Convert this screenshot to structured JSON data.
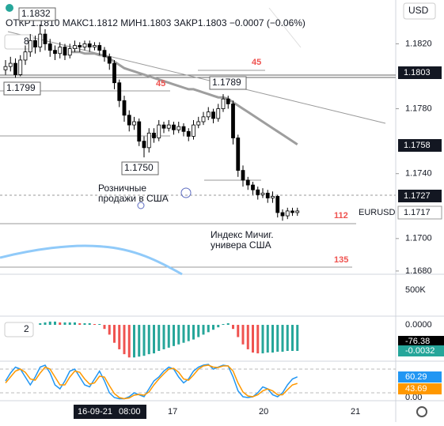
{
  "toolbar": {
    "currency": "USD"
  },
  "chart_data": {
    "type": "candlestick",
    "symbol": "EURUSD",
    "legend": "ОТКР1.1810  МАКС1.1812  МИН1.1803  ЗАКР1.1803  −0.0007 (−0.06%)",
    "indicator_count": "8",
    "open": [
      1.1804,
      1.1806,
      1.1808,
      1.1801,
      1.181,
      1.1815,
      1.1822,
      1.1818,
      1.1826,
      1.182,
      1.1816,
      1.1814,
      1.1818,
      1.1813,
      1.1817,
      1.1819,
      1.1818,
      1.182,
      1.1818,
      1.1819,
      1.1816,
      1.1812,
      1.1808,
      1.1796,
      1.1785,
      1.1776,
      1.177,
      1.1772,
      1.176,
      1.1756,
      1.1765,
      1.1762,
      1.177,
      1.1768,
      1.177,
      1.1767,
      1.1769,
      1.1766,
      1.1763,
      1.177,
      1.1772,
      1.1775,
      1.1778,
      1.1774,
      1.178,
      1.1786,
      1.1783,
      1.1762,
      1.1742,
      1.1736,
      1.1733,
      1.173,
      1.1727,
      1.1728,
      1.1725,
      1.1726,
      1.1716,
      1.1714,
      1.1717,
      1.1716
    ],
    "high": [
      1.181,
      1.1812,
      1.1811,
      1.1813,
      1.1819,
      1.1826,
      1.1825,
      1.1832,
      1.1829,
      1.1823,
      1.1819,
      1.1821,
      1.182,
      1.182,
      1.1822,
      1.1821,
      1.1822,
      1.1822,
      1.1821,
      1.1821,
      1.1818,
      1.1814,
      1.181,
      1.1798,
      1.1788,
      1.1779,
      1.1775,
      1.1774,
      1.1763,
      1.1768,
      1.1768,
      1.1773,
      1.1772,
      1.1773,
      1.1772,
      1.1772,
      1.1771,
      1.1768,
      1.1773,
      1.1775,
      1.1778,
      1.1781,
      1.178,
      1.1783,
      1.1789,
      1.1788,
      1.1785,
      1.1764,
      1.1745,
      1.1738,
      1.1735,
      1.1732,
      1.1731,
      1.173,
      1.1729,
      1.1727,
      1.1718,
      1.1719,
      1.1719,
      1.1719
    ],
    "low": [
      1.1801,
      1.1803,
      1.1799,
      1.18,
      1.1807,
      1.1812,
      1.1814,
      1.1815,
      1.1816,
      1.1812,
      1.181,
      1.1811,
      1.181,
      1.1811,
      1.1815,
      1.1815,
      1.1816,
      1.1815,
      1.1816,
      1.1813,
      1.1809,
      1.1804,
      1.1792,
      1.1781,
      1.1772,
      1.1766,
      1.1767,
      1.1757,
      1.175,
      1.1753,
      1.1759,
      1.176,
      1.1765,
      1.1766,
      1.1764,
      1.1765,
      1.1763,
      1.176,
      1.1761,
      1.1768,
      1.177,
      1.1773,
      1.1771,
      1.1772,
      1.1778,
      1.178,
      1.1758,
      1.1738,
      1.1732,
      1.173,
      1.1727,
      1.1724,
      1.1725,
      1.1722,
      1.1722,
      1.1713,
      1.1711,
      1.1712,
      1.1714,
      1.1714
    ],
    "close": [
      1.1806,
      1.1808,
      1.1801,
      1.181,
      1.1815,
      1.1822,
      1.1818,
      1.1826,
      1.182,
      1.1816,
      1.1814,
      1.1818,
      1.1813,
      1.1817,
      1.1819,
      1.1818,
      1.182,
      1.1818,
      1.1819,
      1.1816,
      1.1812,
      1.1808,
      1.1796,
      1.1785,
      1.1776,
      1.177,
      1.1772,
      1.176,
      1.1756,
      1.1765,
      1.1762,
      1.177,
      1.1768,
      1.177,
      1.1767,
      1.1769,
      1.1766,
      1.1763,
      1.177,
      1.1772,
      1.1775,
      1.1778,
      1.1774,
      1.178,
      1.1786,
      1.1783,
      1.1762,
      1.1742,
      1.1736,
      1.1733,
      1.173,
      1.1727,
      1.1728,
      1.1725,
      1.1726,
      1.1716,
      1.1714,
      1.1717,
      1.1716,
      1.1717
    ],
    "up_color": "#ffffff",
    "down_color": "#000000",
    "ma": {
      "color": "#9e9e9e",
      "values": [
        null,
        null,
        null,
        null,
        null,
        null,
        null,
        null,
        null,
        null,
        null,
        null,
        null,
        1.1815,
        1.1815,
        1.1815,
        1.1814,
        1.1814,
        1.1814,
        1.1813,
        1.1813,
        1.1811,
        1.1809,
        1.1807,
        1.1805,
        1.1804,
        1.1803,
        1.1802,
        1.1801,
        1.18,
        1.1799,
        1.1798,
        1.1797,
        1.1796,
        1.1795,
        1.1794,
        1.1793,
        1.1792,
        1.1792,
        1.1791,
        1.179,
        1.1789,
        1.1788,
        1.1787,
        1.1787,
        1.1786,
        1.1784,
        1.1782,
        1.178,
        1.1778,
        1.1776,
        1.1774,
        1.1772,
        1.177,
        1.1768,
        1.1766,
        1.1764,
        1.1762,
        1.176,
        1.1758
      ]
    },
    "ylim": [
      1.1678,
      1.1847
    ],
    "yticks": [
      {
        "value": 1.168,
        "label": "1.1680"
      },
      {
        "value": 1.17,
        "label": "1.1700"
      },
      {
        "value": 1.174,
        "label": "1.1740"
      },
      {
        "value": 1.178,
        "label": "1.1780"
      },
      {
        "value": 1.182,
        "label": "1.1820"
      }
    ],
    "price_tags": [
      "1.1803",
      "1.1758",
      "1.1727",
      "1.1717"
    ],
    "annotations": [
      "1.1832",
      "1.1799",
      "1.1789",
      "1.1750"
    ],
    "levels": [
      "45",
      "45",
      "112",
      "135"
    ],
    "events": [
      [
        "Розничные",
        "продажи в США"
      ],
      [
        "Индекс Мичиг.",
        "универа США"
      ]
    ],
    "volume_label": "500K",
    "macd": {
      "type": "bar",
      "count": "2",
      "up_color": "#26a69a",
      "down_color": "#ef5350",
      "values": [
        null,
        null,
        null,
        null,
        null,
        null,
        null,
        0.0002,
        0.0003,
        0.0004,
        0.0004,
        0.0003,
        0.0003,
        0.0003,
        0.0003,
        0.0002,
        0.0002,
        0.0002,
        0.0001,
        0.0001,
        -0.0005,
        -0.0012,
        -0.0022,
        -0.003,
        -0.0036,
        -0.004,
        -0.004,
        -0.0039,
        -0.0038,
        -0.0036,
        -0.0035,
        -0.0032,
        -0.003,
        -0.0028,
        -0.0026,
        -0.0024,
        -0.0022,
        -0.002,
        -0.0018,
        -0.0015,
        -0.0012,
        -0.0009,
        -0.0006,
        -0.0003,
        0.0001,
        0.0002,
        -0.0005,
        -0.0015,
        -0.0024,
        -0.003,
        -0.0034,
        -0.0035,
        -0.0035,
        -0.0034,
        -0.0034,
        -0.0033,
        -0.0033,
        -0.0032,
        -0.0032,
        -0.0032
      ],
      "ylim": [
        -0.00446,
        0.00107
      ],
      "yticks": [
        {
          "value": 0,
          "label": "0.0000"
        }
      ],
      "tag": "-76.38"
    },
    "stoch": {
      "type": "line",
      "ylim": [
        0,
        100
      ],
      "yticks": [
        {
          "value": 0,
          "label": "0.00"
        }
      ],
      "series": [
        {
          "color": "#2196f3",
          "values": [
            50,
            70,
            85,
            80,
            60,
            40,
            60,
            85,
            90,
            70,
            40,
            30,
            50,
            75,
            80,
            60,
            40,
            35,
            55,
            75,
            50,
            20,
            8,
            5,
            5,
            10,
            20,
            15,
            10,
            30,
            50,
            60,
            75,
            85,
            80,
            60,
            45,
            55,
            75,
            85,
            90,
            92,
            80,
            85,
            90,
            88,
            60,
            25,
            10,
            8,
            10,
            20,
            35,
            30,
            15,
            10,
            20,
            40,
            55,
            60.29
          ]
        },
        {
          "color": "#ff9800",
          "values": [
            45,
            60,
            75,
            80,
            72,
            55,
            52,
            70,
            85,
            80,
            60,
            40,
            40,
            60,
            75,
            72,
            55,
            42,
            45,
            62,
            60,
            38,
            18,
            8,
            5,
            7,
            14,
            16,
            14,
            22,
            40,
            55,
            68,
            80,
            82,
            72,
            55,
            52,
            65,
            80,
            88,
            90,
            85,
            84,
            88,
            88,
            75,
            45,
            22,
            12,
            10,
            15,
            25,
            30,
            25,
            15,
            15,
            28,
            40,
            43.69
          ]
        }
      ]
    },
    "time_labels": [
      "16-09-21",
      "08:00",
      "17",
      "20",
      "21"
    ]
  }
}
